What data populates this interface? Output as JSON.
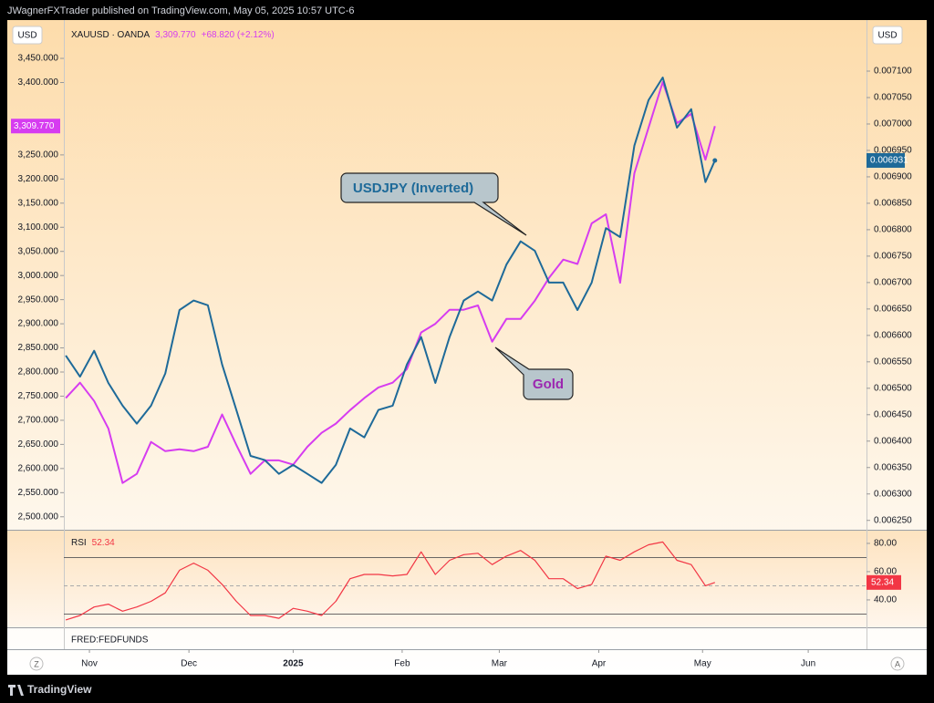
{
  "page": {
    "publisher": "JWagnerFXTrader published on TradingView.com, May 05, 2025 10:57 UTC-6",
    "currency_left": "USD",
    "currency_right": "USD",
    "change": "+68.820 (+2.12%)",
    "secondary_panel": "FRED:FEDFUNDS",
    "left_button": "Z",
    "right_button": "A",
    "brand": "TradingView"
  },
  "chart_data": [
    {
      "type": "line",
      "x": [
        0,
        3,
        6,
        9,
        12,
        15,
        18,
        21,
        24,
        27,
        30,
        33,
        36,
        39,
        42,
        45,
        48,
        51,
        54,
        57,
        60,
        63,
        66,
        69,
        72,
        75,
        78,
        81,
        84,
        87,
        90,
        93,
        96,
        99,
        102,
        105,
        108,
        111,
        114,
        117,
        120,
        123,
        126,
        129,
        132,
        135,
        137
      ],
      "xlim": [
        -0.4,
        169
      ],
      "xticks": [
        {
          "value": 5,
          "label": "Nov"
        },
        {
          "value": 26,
          "label": "Dec"
        },
        {
          "value": 48,
          "label": "2025"
        },
        {
          "value": 71,
          "label": "Feb"
        },
        {
          "value": 91.5,
          "label": "Mar"
        },
        {
          "value": 112.5,
          "label": "Apr"
        },
        {
          "value": 134.4,
          "label": "May"
        },
        {
          "value": 156.7,
          "label": "Jun"
        }
      ],
      "ylim": [
        2475,
        3520
      ],
      "yticks": [
        {
          "value": 3450,
          "label": "3,450.000"
        },
        {
          "value": 3400,
          "label": "3,400.000"
        },
        {
          "value": 3250,
          "label": "3,250.000"
        },
        {
          "value": 3200,
          "label": "3,200.000"
        },
        {
          "value": 3150,
          "label": "3,150.000"
        },
        {
          "value": 3100,
          "label": "3,100.000"
        },
        {
          "value": 3050,
          "label": "3,050.000"
        },
        {
          "value": 3000,
          "label": "3,000.000"
        },
        {
          "value": 2950,
          "label": "2,950.000"
        },
        {
          "value": 2900,
          "label": "2,900.000"
        },
        {
          "value": 2850,
          "label": "2,850.000"
        },
        {
          "value": 2800,
          "label": "2,800.000"
        },
        {
          "value": 2750,
          "label": "2,750.000"
        },
        {
          "value": 2700,
          "label": "2,700.000"
        },
        {
          "value": 2650,
          "label": "2,650.000"
        },
        {
          "value": 2600,
          "label": "2,600.000"
        },
        {
          "value": 2550,
          "label": "2,550.000"
        },
        {
          "value": 2500,
          "label": "2,500.000"
        }
      ],
      "y2lim": [
        0.006234,
        0.007188
      ],
      "y2ticks": [
        {
          "value": 0.0071,
          "label": "0.007100"
        },
        {
          "value": 0.00705,
          "label": "0.007050"
        },
        {
          "value": 0.007,
          "label": "0.007000"
        },
        {
          "value": 0.00695,
          "label": "0.006950"
        },
        {
          "value": 0.0069,
          "label": "0.006900"
        },
        {
          "value": 0.00685,
          "label": "0.006850"
        },
        {
          "value": 0.0068,
          "label": "0.006800"
        },
        {
          "value": 0.00675,
          "label": "0.006750"
        },
        {
          "value": 0.0067,
          "label": "0.006700"
        },
        {
          "value": 0.00665,
          "label": "0.006650"
        },
        {
          "value": 0.0066,
          "label": "0.006600"
        },
        {
          "value": 0.00655,
          "label": "0.006550"
        },
        {
          "value": 0.0065,
          "label": "0.006500"
        },
        {
          "value": 0.00645,
          "label": "0.006450"
        },
        {
          "value": 0.0064,
          "label": "0.006400"
        },
        {
          "value": 0.00635,
          "label": "0.006350"
        },
        {
          "value": 0.0063,
          "label": "0.006300"
        },
        {
          "value": 0.00625,
          "label": "0.006250"
        }
      ],
      "series": [
        {
          "name": "XAUUSD · OANDA",
          "color": "#d63cf0",
          "last_label": "3,309.770",
          "values": [
            2746,
            2778,
            2740,
            2683,
            2570,
            2589,
            2655,
            2636,
            2640,
            2636,
            2645,
            2712,
            2649,
            2589,
            2617,
            2617,
            2608,
            2645,
            2674,
            2693,
            2721,
            2746,
            2768,
            2778,
            2806,
            2882,
            2900,
            2929,
            2929,
            2938,
            2863,
            2910,
            2910,
            2948,
            2995,
            3033,
            3024,
            3108,
            3127,
            2985,
            3212,
            3306,
            3401,
            3316,
            3335,
            3240,
            3309.77
          ]
        },
        {
          "name": "USDJPY (Inverted)",
          "color": "#1e6a99",
          "axis": "y2",
          "values": [
            0.006562,
            0.006522,
            0.006571,
            0.00651,
            0.006467,
            0.006433,
            0.006467,
            0.006528,
            0.006648,
            0.006666,
            0.006657,
            0.006545,
            0.006459,
            0.006372,
            0.006364,
            0.006338,
            0.006355,
            0.006338,
            0.006321,
            0.006355,
            0.006424,
            0.006407,
            0.006459,
            0.006467,
            0.006545,
            0.006597,
            0.00651,
            0.006597,
            0.006666,
            0.006683,
            0.006666,
            0.006734,
            0.006778,
            0.00676,
            0.0067,
            0.0067,
            0.006648,
            0.0067,
            0.006803,
            0.006786,
            0.006959,
            0.007045,
            0.007088,
            0.006993,
            0.007028,
            0.00689,
            0.006931
          ]
        }
      ],
      "annotations": [
        "Gold"
      ]
    },
    {
      "type": "line",
      "x": [
        0,
        3,
        6,
        9,
        12,
        15,
        18,
        21,
        24,
        27,
        30,
        33,
        36,
        39,
        42,
        45,
        48,
        51,
        54,
        57,
        60,
        63,
        66,
        69,
        72,
        75,
        78,
        81,
        84,
        87,
        90,
        93,
        96,
        99,
        102,
        105,
        108,
        111,
        114,
        117,
        120,
        123,
        126,
        129,
        132,
        135,
        137
      ],
      "xlim": [
        -0.4,
        169
      ],
      "ylim": [
        20.6,
        89
      ],
      "yticks": [
        {
          "value": 80,
          "label": "80.00"
        },
        {
          "value": 60,
          "label": "60.00"
        },
        {
          "value": 40,
          "label": "40.00"
        }
      ],
      "bands": [
        70,
        30
      ],
      "midline": 50,
      "series": [
        {
          "name": "RSI",
          "color": "#f23645",
          "values": [
            25.8,
            29,
            35,
            37,
            32,
            35,
            39,
            45,
            61,
            66,
            61,
            51,
            39,
            29,
            29,
            27,
            34,
            32,
            29,
            39,
            55,
            58,
            58,
            57,
            58,
            74,
            58,
            68,
            72,
            73,
            65,
            71,
            75,
            68,
            55,
            55,
            48,
            51,
            71,
            68,
            74,
            79,
            81,
            68,
            65,
            50,
            52.34
          ]
        }
      ]
    }
  ]
}
